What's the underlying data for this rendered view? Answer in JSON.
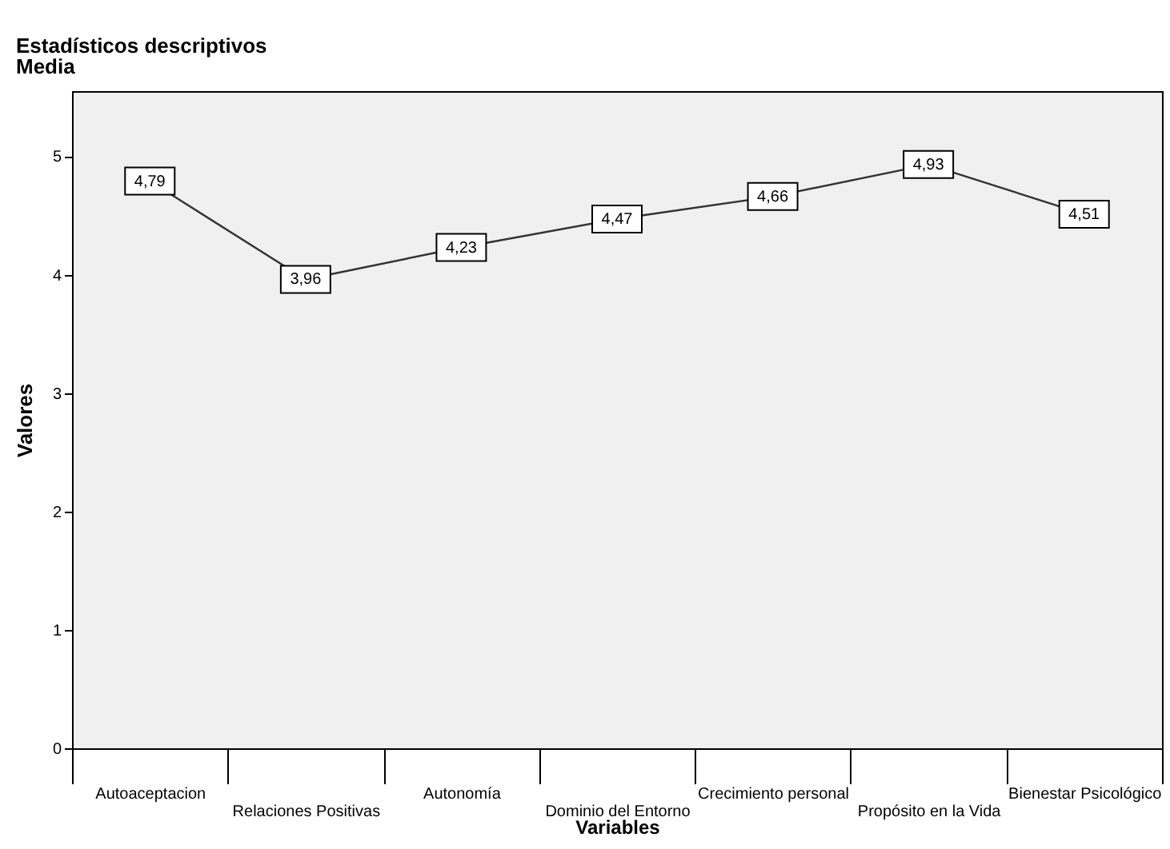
{
  "chart_data": {
    "type": "line",
    "title": "Estadísticos descriptivos",
    "subtitle": "Media",
    "xlabel": "Variables",
    "ylabel": "Valores",
    "categories": [
      "Autoaceptacion",
      "Relaciones Positivas",
      "Autonomía",
      "Dominio del Entorno",
      "Crecimiento personal",
      "Propósito en la Vida",
      "Bienestar Psicológico"
    ],
    "series": [
      {
        "color": "#333333",
        "marker": "square",
        "values": [
          4.79,
          3.96,
          4.23,
          4.47,
          4.66,
          4.93,
          4.51
        ],
        "value_labels": [
          "4,79",
          "3,96",
          "4,23",
          "4,47",
          "4,66",
          "4,93",
          "4,51"
        ]
      }
    ],
    "ylim": [
      0,
      5.55
    ],
    "yticks": [
      0,
      1,
      2,
      3,
      4,
      5
    ],
    "grid": false,
    "line_style": "solid"
  }
}
